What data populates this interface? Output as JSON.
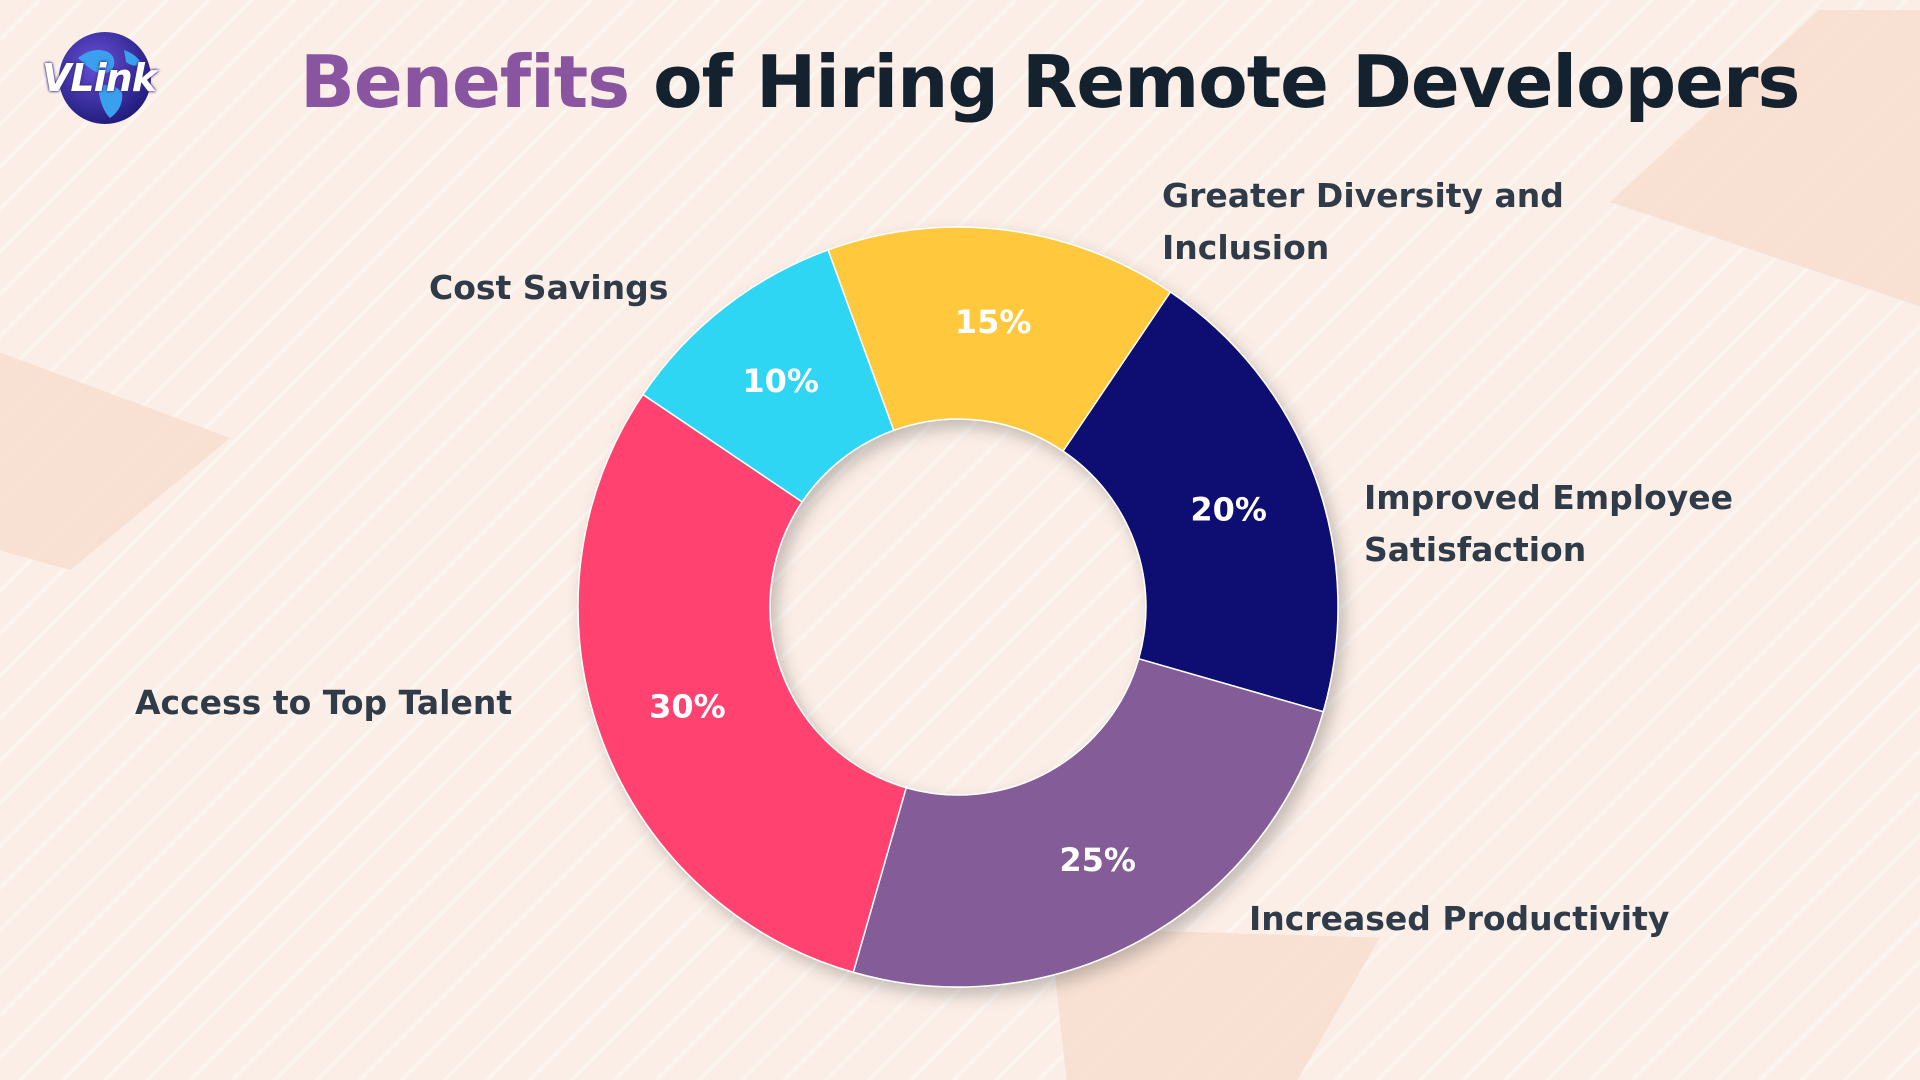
{
  "brand": {
    "logo_text": "VLink"
  },
  "title": {
    "highlight": "Benefits",
    "rest": " of Hiring Remote Developers"
  },
  "chart_data": {
    "type": "pie",
    "donut": true,
    "title": "Benefits of Hiring Remote Developers",
    "slices": [
      {
        "label": "Greater Diversity and Inclusion",
        "value": 15,
        "display": "15%",
        "color": "#ffc83d"
      },
      {
        "label": "Improved Employee Satisfaction",
        "value": 20,
        "display": "20%",
        "color": "#0a0a72"
      },
      {
        "label": "Increased Productivity",
        "value": 25,
        "display": "25%",
        "color": "#845d98"
      },
      {
        "label": "Access to Top Talent",
        "value": 30,
        "display": "30%",
        "color": "#ff426f"
      },
      {
        "label": "Cost Savings",
        "value": 10,
        "display": "10%",
        "color": "#2fd6f4"
      }
    ]
  },
  "labels": {
    "diversity": [
      "Greater Diversity and",
      "Inclusion"
    ],
    "satisfaction": [
      "Improved Employee",
      "Satisfaction"
    ],
    "productivity": "Increased Productivity",
    "talent": "Access to Top Talent",
    "cost": "Cost Savings"
  }
}
